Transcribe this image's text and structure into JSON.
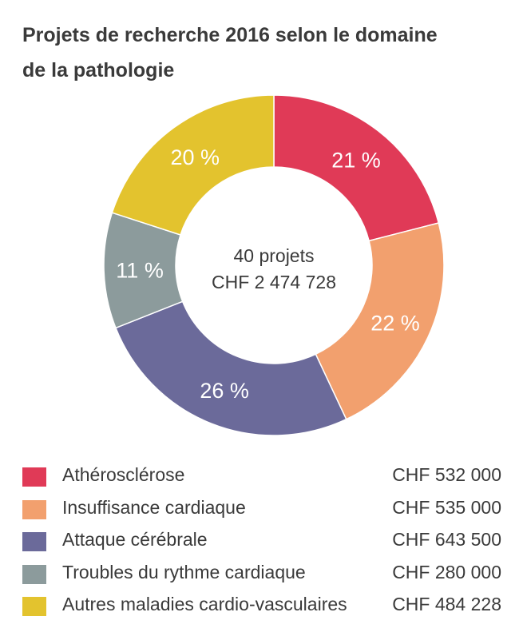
{
  "title_line1": "Projets de recherche 2016 selon le domaine",
  "title_line2": "de la pathologie",
  "center_line1": "40 projets",
  "center_line2": "CHF 2 474 728",
  "chart_data": {
    "type": "pie",
    "title": "Projets de recherche 2016 selon le domaine de la pathologie",
    "slices": [
      {
        "label": "Athérosclérose",
        "value": 21,
        "value_label": "21 %",
        "amount": "CHF 532 000",
        "color": "#e03a57"
      },
      {
        "label": "Insuffisance cardiaque",
        "value": 22,
        "value_label": "22 %",
        "amount": "CHF 535 000",
        "color": "#f2a06e"
      },
      {
        "label": "Attaque cérébrale",
        "value": 26,
        "value_label": "26 %",
        "amount": "CHF 643 500",
        "color": "#6b6a9a"
      },
      {
        "label": "Troubles du rythme cardiaque",
        "value": 11,
        "value_label": "11 %",
        "amount": "CHF 280 000",
        "color": "#8c9b9c"
      },
      {
        "label": "Autres maladies cardio-vasculaires",
        "value": 20,
        "value_label": "20 %",
        "amount": "CHF 484 228",
        "color": "#e3c32e"
      }
    ],
    "legend": "bottom"
  }
}
